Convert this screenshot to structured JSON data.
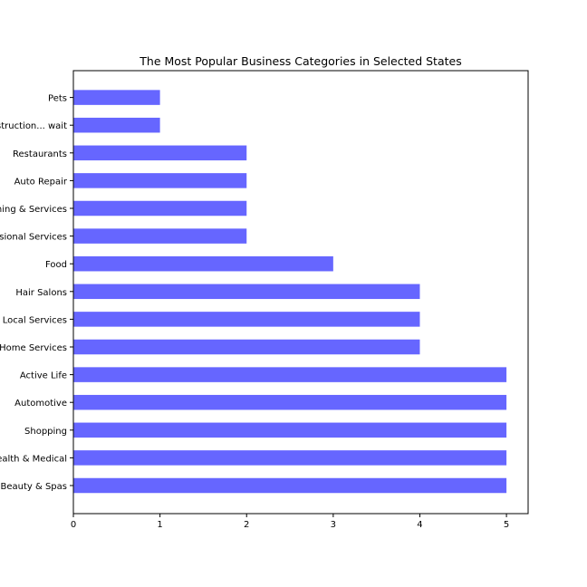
{
  "chart_data": {
    "type": "bar",
    "orientation": "horizontal",
    "title": "The Most Popular Business Categories in Selected States",
    "xlabel": "",
    "ylabel": "",
    "xlim": [
      0,
      5.25
    ],
    "x_ticks": [
      0,
      1,
      2,
      3,
      4,
      5
    ],
    "grid": false,
    "legend": "none",
    "bar_color": "#6666ff",
    "categories": [
      "Beauty & Spas",
      "Health & Medical",
      "Shopping",
      "Automotive",
      "Active Life",
      "Home Services",
      "Local Services",
      "Hair Salons",
      "Food",
      "Professional Services",
      "Event Planning & Services",
      "Auto Repair",
      "Restaurants",
      "Education & Instruction... wait",
      "Pets"
    ],
    "values": [
      5,
      5,
      5,
      5,
      5,
      4,
      4,
      4,
      3,
      2,
      2,
      2,
      2,
      1,
      1
    ]
  }
}
